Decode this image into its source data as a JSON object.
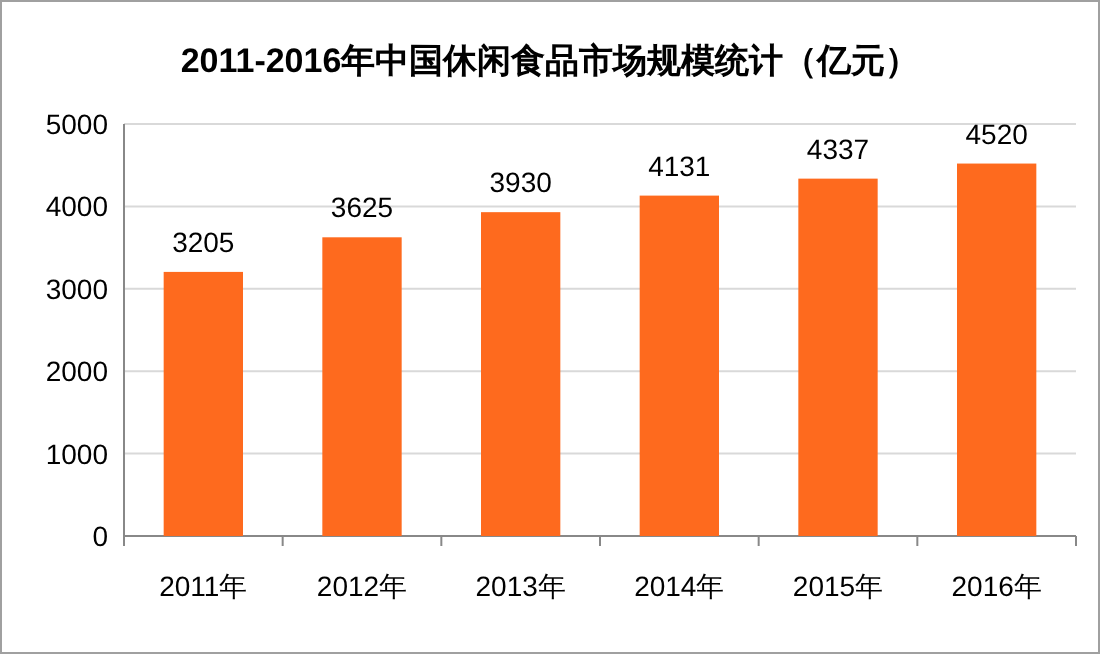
{
  "chart_data": {
    "type": "bar",
    "title": "2011-2016年中国休闲食品市场规模统计（亿元）",
    "categories": [
      "2011年",
      "2012年",
      "2013年",
      "2014年",
      "2015年",
      "2016年"
    ],
    "values": [
      3205,
      3625,
      3930,
      4131,
      4337,
      4520
    ],
    "color": "#fe6a1e",
    "ylim": [
      0,
      5000
    ],
    "yticks": [
      0,
      1000,
      2000,
      3000,
      4000,
      5000
    ],
    "grid": "y",
    "data_labels": true
  }
}
